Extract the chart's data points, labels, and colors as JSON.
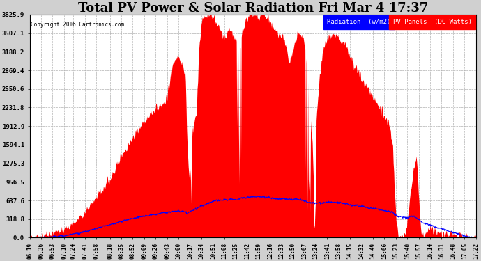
{
  "title": "Total PV Power & Solar Radiation Fri Mar 4 17:37",
  "copyright": "Copyright 2016 Cartronics.com",
  "legend_radiation": "Radiation  (w/m2)",
  "legend_pv": "PV Panels  (DC Watts)",
  "yticks": [
    0.0,
    318.8,
    637.6,
    956.5,
    1275.3,
    1594.1,
    1912.9,
    2231.8,
    2550.6,
    2869.4,
    3188.2,
    3507.1,
    3825.9
  ],
  "ymax": 3825.9,
  "background_color": "#d0d0d0",
  "plot_bg_color": "#ffffff",
  "grid_color": "#b0b0b0",
  "red_fill_color": "#ff0000",
  "blue_line_color": "#0000ff",
  "title_fontsize": 13,
  "xtick_labels": [
    "06:19",
    "06:36",
    "06:53",
    "07:10",
    "07:24",
    "07:41",
    "07:58",
    "08:18",
    "08:35",
    "08:52",
    "09:09",
    "09:26",
    "09:43",
    "10:00",
    "10:17",
    "10:34",
    "10:51",
    "11:08",
    "11:25",
    "11:42",
    "11:59",
    "12:16",
    "12:33",
    "12:50",
    "13:07",
    "13:24",
    "13:41",
    "13:58",
    "14:15",
    "14:32",
    "14:49",
    "15:06",
    "15:23",
    "15:40",
    "15:57",
    "16:14",
    "16:31",
    "16:48",
    "17:05",
    "17:22"
  ]
}
